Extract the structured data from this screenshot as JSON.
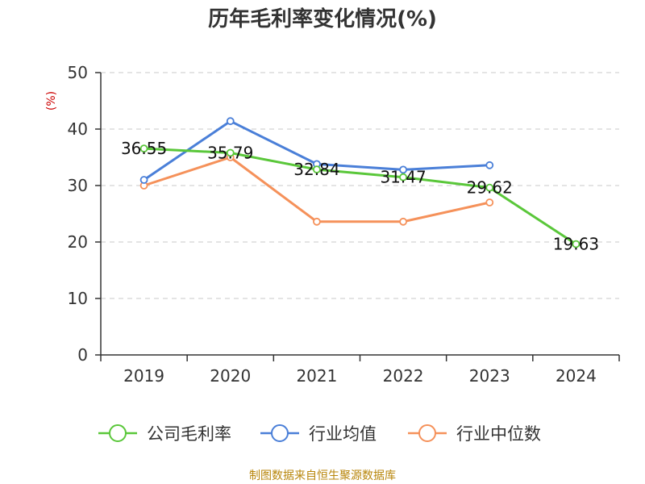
{
  "chart_data": {
    "type": "line",
    "title": "历年毛利率变化情况(%)",
    "ylabel": "(%)",
    "xlabel": "",
    "categories": [
      "2019",
      "2020",
      "2021",
      "2022",
      "2023",
      "2024"
    ],
    "yticks": [
      "0",
      "10",
      "20",
      "30",
      "40",
      "50"
    ],
    "ylim": [
      0,
      50
    ],
    "grid": true,
    "legend_position": "bottom",
    "series": [
      {
        "name": "公司毛利率",
        "color": "#5ac73a",
        "values": [
          36.55,
          35.79,
          32.84,
          31.47,
          29.62,
          19.63
        ],
        "labels": [
          "36.55",
          "35.79",
          "32.84",
          "31.47",
          "29.62",
          "19.63"
        ]
      },
      {
        "name": "行业均值",
        "color": "#4a7fd8",
        "values": [
          31.0,
          41.4,
          33.8,
          32.8,
          33.6,
          null
        ]
      },
      {
        "name": "行业中位数",
        "color": "#f5915a",
        "values": [
          30.0,
          35.0,
          23.6,
          23.6,
          27.0,
          null
        ]
      }
    ]
  },
  "footer": {
    "source": "制图数据来自恒生聚源数据库"
  }
}
